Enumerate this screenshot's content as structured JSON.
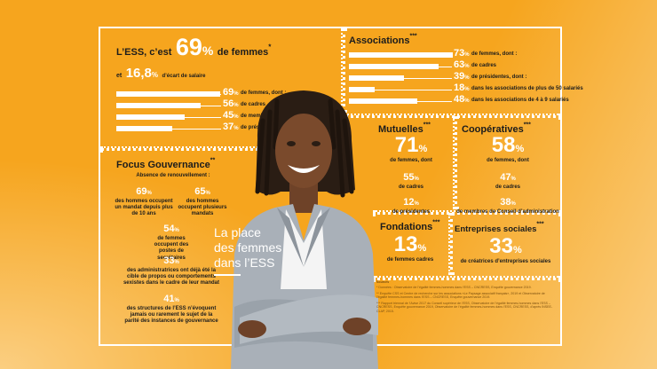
{
  "headline": {
    "prefix": "L’ESS, c’est",
    "pct": "69",
    "unit": "%",
    "suffix": "de femmes",
    "mark": "*"
  },
  "gap": {
    "prefix": "et",
    "value": "16,8",
    "unit": "%",
    "suffix": "d’écart de salaire"
  },
  "left_bars": [
    {
      "value": "69",
      "label": "de femmes, dont :",
      "fraction": 0.69
    },
    {
      "value": "56",
      "label": "de cadres",
      "fraction": 0.56
    },
    {
      "value": "45",
      "label": "de membres de CA",
      "fraction": 0.45
    },
    {
      "value": "37",
      "label": "de présidentes",
      "fraction": 0.37
    }
  ],
  "assoc": {
    "title": "Associations",
    "mark": "***",
    "bars": [
      {
        "value": "73",
        "label": "de femmes, dont :",
        "fraction": 0.73
      },
      {
        "value": "63",
        "label": "de cadres",
        "fraction": 0.63
      },
      {
        "value": "39",
        "label": "de présidentes, dont :",
        "fraction": 0.39
      },
      {
        "value": "18",
        "label": "dans les associations de plus de 50 salariés",
        "fraction": 0.18
      },
      {
        "value": "48",
        "label": "dans les associations de 4 à 9 salariés",
        "fraction": 0.48
      }
    ]
  },
  "governance": {
    "title": "Focus Gouvernance",
    "mark": "**",
    "subtitle": "Absence de renouvellement :",
    "items": [
      {
        "value": "69",
        "label": "des hommes occupent un mandat depuis plus de 10 ans"
      },
      {
        "value": "65",
        "label": "des hommes occupent plusieurs mandats"
      },
      {
        "value": "54",
        "label": "de femmes occupent des postes de secrétaires"
      },
      {
        "value": "33",
        "label": "des administratrices ont déjà été la cible de propos ou comportements sexistes dans le cadre de leur mandat"
      },
      {
        "value": "41",
        "label": "des structures de l’ESS n’évoquent jamais ou rarement le sujet de la parité des instances de gouvernance"
      }
    ]
  },
  "mutuelles": {
    "title": "Mutuelles",
    "mark": "***",
    "big": "71",
    "big_label": "de femmes, dont",
    "a": "55",
    "a_label": "de cadres",
    "b": "12",
    "b_label": "de présidentes"
  },
  "coop": {
    "title": "Coopératives",
    "mark": "***",
    "big": "58",
    "big_label": "de femmes, dont",
    "a": "47",
    "a_label": "de cadres",
    "b": "38",
    "b_label": "de membres de Conseil d’administration"
  },
  "fondations": {
    "title": "Fondations",
    "mark": "***",
    "big": "13",
    "big_label": "de femmes cadres"
  },
  "entreprises": {
    "title": "Entreprises sociales",
    "mark": "***",
    "big": "33",
    "big_label": "de créatrices d’entreprises sociales"
  },
  "pct_unit": "%",
  "main_title": [
    "La place",
    "des femmes",
    "dans l’ESS"
  ],
  "sources": {
    "heading": "Sources",
    "lines": [
      "* Données : Observatoire de l’égalité femmes-hommes dans l’ESS – CNCRESS, Enquête gouvernance 2019.",
      "** Enquête CSS et Centre de recherche sur les associations «Le Paysage associatif français», 2019 et Observatoire de l’égalité femmes-hommes dans l’ESS – CNCRESS, Enquête gouvernance 2019.",
      "*** Rapport triennal de l’Avise 2017 du Conseil supérieur de l’ESS, Observatoire de l’égalité femmes-hommes dans l’ESS – CNCRESS, Enquête gouvernance 2019, Observatoire de l’égalité femmes-hommes dans l’ESS, CNCRESS, d’après INSEE-CLAP, 2015."
    ]
  },
  "colors": {
    "background": "#f6a51e",
    "white": "#ffffff",
    "text": "#1c1c1c"
  }
}
